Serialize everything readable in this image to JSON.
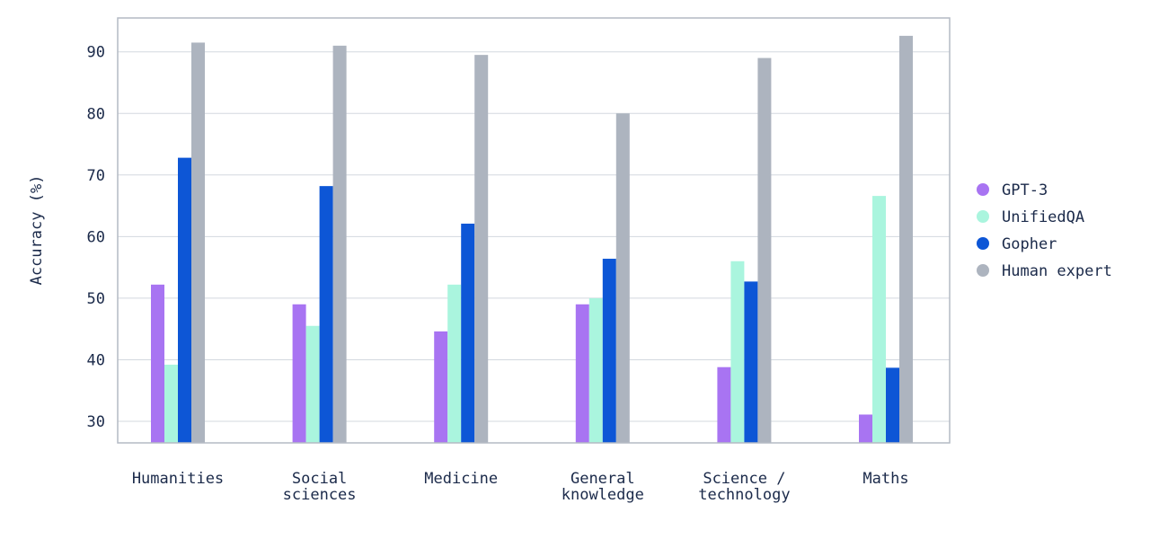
{
  "chart_data": {
    "type": "bar",
    "title": "",
    "xlabel": "",
    "ylabel": "Accuracy (%)",
    "ylim": [
      26.5,
      95.5
    ],
    "yticks": [
      30,
      40,
      50,
      60,
      70,
      80,
      90
    ],
    "grid": true,
    "legend_position": "right",
    "categories": [
      [
        "Humanities"
      ],
      [
        "Social",
        "sciences"
      ],
      [
        "Medicine"
      ],
      [
        "General",
        "knowledge"
      ],
      [
        "Science /",
        "technology"
      ],
      [
        "Maths"
      ]
    ],
    "series": [
      {
        "name": "GPT-3",
        "color": "#a874f2",
        "values": [
          52.2,
          49,
          44.6,
          49,
          38.8,
          31.1
        ]
      },
      {
        "name": "UnifiedQA",
        "color": "#aaf5de",
        "values": [
          39.2,
          45.5,
          52.2,
          50,
          56,
          66.6
        ]
      },
      {
        "name": "Gopher",
        "color": "#0d56d6",
        "values": [
          72.8,
          68.2,
          62.1,
          56.4,
          52.7,
          38.7
        ]
      },
      {
        "name": "Human expert",
        "color": "#adb4bf",
        "values": [
          91.5,
          91,
          89.5,
          80,
          89,
          92.6
        ]
      }
    ]
  }
}
